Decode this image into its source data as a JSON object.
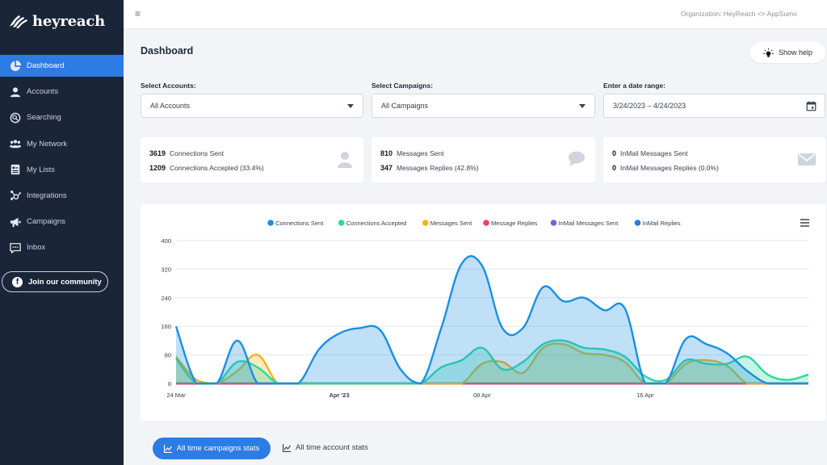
{
  "app": {
    "logo_text": "heyreach"
  },
  "sidebar": {
    "items": [
      {
        "label": "Dashboard",
        "icon": "pie-chart-icon",
        "active": true
      },
      {
        "label": "Accounts",
        "icon": "user-icon",
        "active": false
      },
      {
        "label": "Searching",
        "icon": "search-icon",
        "active": false
      },
      {
        "label": "My Network",
        "icon": "users-icon",
        "active": false
      },
      {
        "label": "My Lists",
        "icon": "list-icon",
        "active": false
      },
      {
        "label": "Integrations",
        "icon": "hub-icon",
        "active": false
      },
      {
        "label": "Campaigns",
        "icon": "megaphone-icon",
        "active": false
      },
      {
        "label": "Inbox",
        "icon": "chat-icon",
        "active": false
      }
    ],
    "community_label": "Join our community"
  },
  "topbar": {
    "organization": "Organization: HeyReach <> AppSumo"
  },
  "page": {
    "title": "Dashboard",
    "help_label": "Show help"
  },
  "filters": {
    "accounts": {
      "label": "Select Accounts:",
      "value": "All Accounts"
    },
    "campaigns": {
      "label": "Select Campaigns:",
      "value": "All Campaigns"
    },
    "date": {
      "label": "Enter a date range:",
      "value": "3/24/2023 – 4/24/2023"
    }
  },
  "stats": {
    "connections": [
      {
        "value": "3619",
        "label": "Connections Sent"
      },
      {
        "value": "1209",
        "label": "Connections Accepted (33.4%)"
      }
    ],
    "messages": [
      {
        "value": "810",
        "label": "Messages Sent"
      },
      {
        "value": "347",
        "label": "Messages Replies (42.8%)"
      }
    ],
    "inmail": [
      {
        "value": "0",
        "label": "InMail Messages Sent"
      },
      {
        "value": "0",
        "label": "InMail Messages Replies (0.0%)"
      }
    ]
  },
  "tabs": {
    "active": "All time campaigns stats",
    "other": "All time account stats"
  },
  "colors": {
    "accent": "#2d7be5",
    "sidebar_bg": "#1b2538"
  },
  "chart_data": {
    "type": "area",
    "xlabel": "",
    "ylabel": "",
    "ylim": [
      0,
      400
    ],
    "yticks": [
      0,
      80,
      160,
      240,
      320,
      400
    ],
    "xticks": [
      {
        "day": 0,
        "label": "24 Mar"
      },
      {
        "day": 8,
        "label": "Apr '23"
      },
      {
        "day": 15,
        "label": "08 Apr"
      },
      {
        "day": 23,
        "label": "16 Apr"
      }
    ],
    "legend_position": "top",
    "x": [
      0,
      1,
      2,
      3,
      4,
      5,
      6,
      7,
      8,
      9,
      10,
      11,
      12,
      13,
      14,
      15,
      16,
      17,
      18,
      19,
      20,
      21,
      22,
      23,
      24,
      25,
      26,
      27,
      28,
      29,
      30,
      31
    ],
    "series": [
      {
        "name": "Connections Sent",
        "color": "#1a8fe3",
        "values": [
          160,
          0,
          0,
          120,
          0,
          0,
          0,
          95,
          140,
          155,
          150,
          40,
          0,
          155,
          335,
          330,
          155,
          155,
          270,
          230,
          240,
          205,
          210,
          0,
          0,
          125,
          110,
          85,
          35,
          0,
          0,
          0
        ]
      },
      {
        "name": "Connections Accepted",
        "color": "#2ed8a0",
        "values": [
          70,
          0,
          0,
          60,
          45,
          0,
          0,
          0,
          0,
          0,
          0,
          0,
          0,
          45,
          65,
          100,
          40,
          60,
          110,
          120,
          100,
          95,
          75,
          20,
          10,
          65,
          55,
          55,
          75,
          25,
          10,
          25
        ]
      },
      {
        "name": "Messages Sent",
        "color": "#f2b21d",
        "values": [
          75,
          10,
          0,
          35,
          80,
          0,
          0,
          0,
          0,
          0,
          0,
          0,
          0,
          0,
          0,
          55,
          60,
          30,
          100,
          110,
          85,
          80,
          60,
          0,
          0,
          55,
          65,
          50,
          0,
          0,
          0,
          0
        ]
      },
      {
        "name": "Message Replies",
        "color": "#f0415d",
        "values": [
          0,
          0,
          0,
          0,
          0,
          0,
          0,
          0,
          0,
          0,
          0,
          0,
          0,
          0,
          0,
          0,
          0,
          0,
          0,
          0,
          0,
          0,
          0,
          0,
          0,
          0,
          0,
          0,
          0,
          0,
          0,
          0
        ]
      },
      {
        "name": "InMail Messages Sent",
        "color": "#7d5fd3",
        "values": [
          0,
          0,
          0,
          0,
          0,
          0,
          0,
          0,
          0,
          0,
          0,
          0,
          0,
          0,
          0,
          0,
          0,
          0,
          0,
          0,
          0,
          0,
          0,
          0,
          0,
          0,
          0,
          0,
          0,
          0,
          0,
          0
        ]
      },
      {
        "name": "InMail Replies",
        "color": "#2b7ce6",
        "values": [
          0,
          0,
          0,
          0,
          0,
          0,
          0,
          0,
          0,
          0,
          0,
          0,
          0,
          0,
          0,
          0,
          0,
          0,
          0,
          0,
          0,
          0,
          0,
          0,
          0,
          0,
          0,
          0,
          0,
          0,
          0,
          0
        ]
      }
    ]
  }
}
